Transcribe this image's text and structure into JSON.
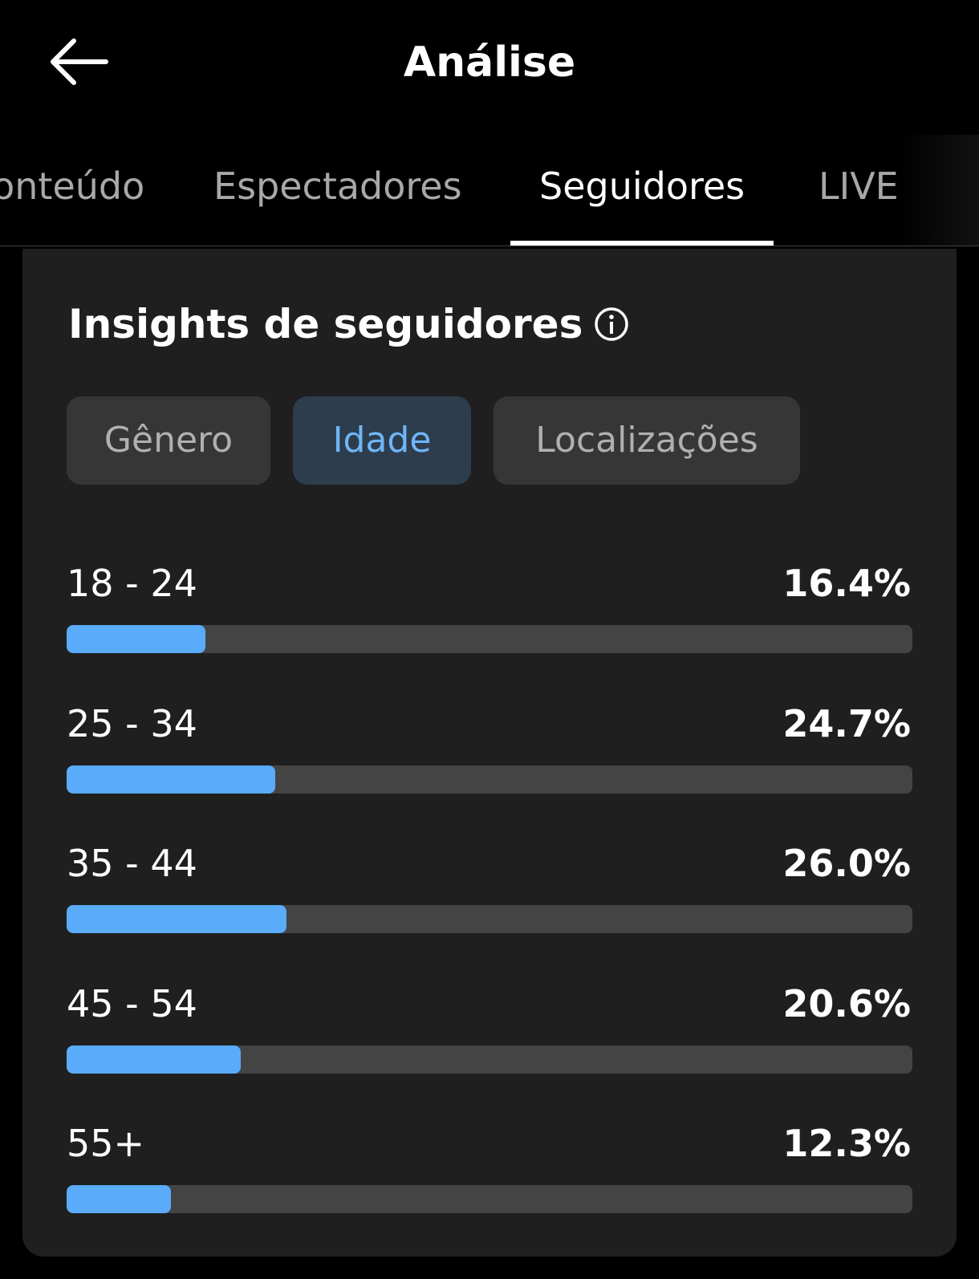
{
  "header": {
    "title": "Análise"
  },
  "tabs": [
    "Conteúdo",
    "Espectadores",
    "Seguidores",
    "LIVE"
  ],
  "active_tab": 2,
  "card": {
    "title": "Insights de seguidores",
    "filters": [
      "Gênero",
      "Idade",
      "Localizações"
    ],
    "active_filter": 1
  },
  "chart_data": {
    "type": "bar",
    "categories": [
      "18 - 24",
      "25 - 34",
      "35 - 44",
      "45 - 54",
      "55+"
    ],
    "values": [
      16.4,
      24.7,
      26.0,
      20.6,
      12.3
    ],
    "value_labels": [
      "16.4%",
      "24.7%",
      "26.0%",
      "20.6%",
      "12.3%"
    ],
    "xlim": [
      0,
      100
    ],
    "color": "#5aabfa"
  }
}
